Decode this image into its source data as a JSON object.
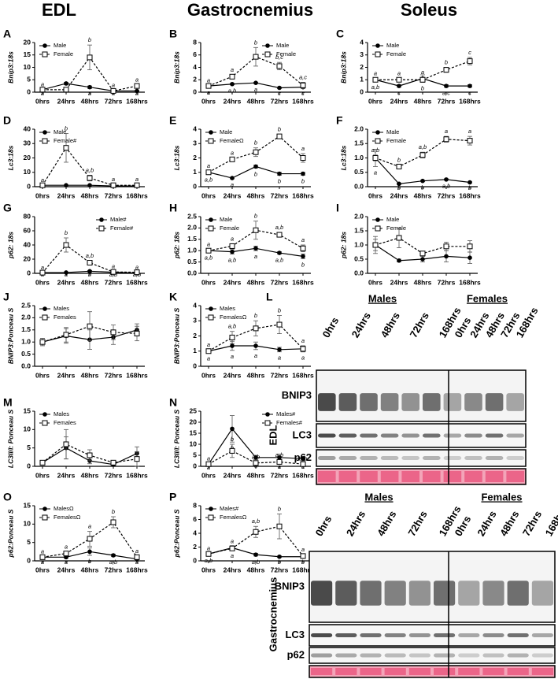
{
  "column_headers": [
    "EDL",
    "Gastrocnemius",
    "Soleus"
  ],
  "chart_data": [
    {
      "type": "line",
      "panel": "A",
      "ylabel": "Bnip3:18s",
      "categories": [
        "0hrs",
        "24hrs",
        "48hrs",
        "72hrs",
        "168hrs"
      ],
      "ylim": [
        0,
        20
      ],
      "yticks": [
        0,
        5,
        10,
        15,
        20
      ],
      "legend": "upper left",
      "series": [
        {
          "name": "Male",
          "color": "#000000",
          "dashed": false,
          "values": [
            1,
            3.5,
            2,
            0.5,
            0.5
          ],
          "errors": [
            0.1,
            0.5,
            0.5,
            0.2,
            0.2
          ],
          "letters": [
            "a",
            "b",
            "a",
            "a",
            "a"
          ]
        },
        {
          "name": "Female",
          "color": "#000000",
          "dashed": true,
          "values": [
            1,
            1,
            14,
            0.5,
            2.5
          ],
          "errors": [
            0.1,
            0.5,
            5,
            0.3,
            0.5
          ],
          "letters": [
            "a",
            "a",
            "b",
            "a",
            "a"
          ]
        }
      ]
    },
    {
      "type": "line",
      "panel": "B",
      "ylabel": "Bnip3:18s",
      "categories": [
        "0hrs",
        "24hrs",
        "48hrs",
        "72hrs",
        "168hrs"
      ],
      "ylim": [
        0,
        8
      ],
      "yticks": [
        0,
        2,
        4,
        6,
        8
      ],
      "legend": "upper right",
      "series": [
        {
          "name": "Male",
          "color": "#000000",
          "dashed": false,
          "values": [
            1,
            1.3,
            1.5,
            0.7,
            0.8
          ],
          "errors": [
            0.1,
            0.1,
            0.1,
            0.1,
            0.1
          ],
          "letters": [
            "a",
            "a,b",
            "a",
            "c",
            "c"
          ]
        },
        {
          "name": "Female",
          "color": "#000000",
          "dashed": true,
          "values": [
            1,
            2.5,
            5.7,
            4.2,
            1.1
          ],
          "errors": [
            0.1,
            0.3,
            1.5,
            0.6,
            0.5
          ],
          "letters": [
            "a",
            "a",
            "b",
            "b,c",
            "a,c"
          ]
        }
      ]
    },
    {
      "type": "line",
      "panel": "C",
      "ylabel": "Bnip3:18s",
      "categories": [
        "0hrs",
        "24hrs",
        "48hrs",
        "72hrs",
        "168hrs"
      ],
      "ylim": [
        0,
        4
      ],
      "yticks": [
        0,
        1,
        2,
        3,
        4
      ],
      "legend": "upper left",
      "series": [
        {
          "name": "Male",
          "color": "#000000",
          "dashed": false,
          "values": [
            1,
            0.5,
            1.1,
            0.5,
            0.5
          ],
          "errors": [
            0.1,
            0.1,
            0.3,
            0.1,
            0.1
          ],
          "letters": [
            "a,b",
            "c",
            "b",
            "a,c",
            "c"
          ]
        },
        {
          "name": "Female",
          "color": "#000000",
          "dashed": true,
          "values": [
            1,
            1,
            1,
            1.8,
            2.5
          ],
          "errors": [
            0.1,
            0.1,
            0.2,
            0.2,
            0.3
          ],
          "letters": [
            "a",
            "a",
            "a",
            "b",
            "c"
          ]
        }
      ]
    },
    {
      "type": "line",
      "panel": "D",
      "ylabel": "Lc3:18s",
      "categories": [
        "0hrs",
        "24hrs",
        "48hrs",
        "72hrs",
        "168hrs"
      ],
      "ylim": [
        0,
        40
      ],
      "yticks": [
        0,
        10,
        20,
        30,
        40
      ],
      "legend": "upper left",
      "series": [
        {
          "name": "Male",
          "color": "#000000",
          "dashed": false,
          "values": [
            1,
            1,
            1,
            0.5,
            0.5
          ],
          "errors": [
            0.2,
            0.2,
            0.2,
            0.2,
            0.2
          ]
        },
        {
          "name": "Female#",
          "color": "#000000",
          "dashed": true,
          "values": [
            1,
            27,
            6,
            1,
            1
          ],
          "errors": [
            0.2,
            10,
            2,
            0.5,
            0.5
          ],
          "letters": [
            "a",
            "b",
            "a,b",
            "a",
            "a"
          ]
        }
      ]
    },
    {
      "type": "line",
      "panel": "E",
      "ylabel": "Lc3:18s",
      "categories": [
        "0hrs",
        "24hrs",
        "48hrs",
        "72hrs",
        "168hrs"
      ],
      "ylim": [
        0,
        4
      ],
      "yticks": [
        0,
        1,
        2,
        3,
        4
      ],
      "legend": "upper left",
      "series": [
        {
          "name": "Male",
          "color": "#000000",
          "dashed": false,
          "values": [
            1,
            0.6,
            1.4,
            0.9,
            0.9
          ],
          "errors": [
            0.1,
            0.05,
            0.1,
            0.1,
            0.1
          ],
          "letters": [
            "a,b",
            "a",
            "b",
            "b",
            "b"
          ]
        },
        {
          "name": "FemaleΩ",
          "color": "#000000",
          "dashed": true,
          "values": [
            1,
            1.9,
            2.4,
            3.5,
            2.0
          ],
          "errors": [
            0.1,
            0.1,
            0.3,
            0.15,
            0.3
          ],
          "letters": [
            "a",
            "a",
            "b",
            "b",
            "a"
          ]
        }
      ]
    },
    {
      "type": "line",
      "panel": "F",
      "ylabel": "Lc3:18s",
      "categories": [
        "0hrs",
        "24hrs",
        "48hrs",
        "72hrs",
        "168hrs"
      ],
      "ylim": [
        0,
        2
      ],
      "yticks": [
        {
          "value": 0,
          "label": "0.0"
        },
        0.5,
        {
          "value": 1,
          "label": "1.0"
        },
        1.5,
        {
          "value": 2,
          "label": "2.0"
        }
      ],
      "legend": "upper left",
      "series": [
        {
          "name": "Male",
          "color": "#000000",
          "dashed": false,
          "values": [
            1,
            0.1,
            0.2,
            0.25,
            0.15
          ],
          "errors": [
            0.3,
            0.02,
            0.02,
            0.02,
            0.02
          ],
          "letters": [
            "a",
            "b",
            "b",
            "a,b",
            "b"
          ]
        },
        {
          "name": "Female",
          "color": "#000000",
          "dashed": true,
          "values": [
            1,
            0.7,
            1.1,
            1.65,
            1.6
          ],
          "errors": [
            0.1,
            0.05,
            0.1,
            0.1,
            0.15
          ],
          "letters": [
            "a,b",
            "b",
            "a,b",
            "a",
            "a"
          ]
        }
      ]
    },
    {
      "type": "line",
      "panel": "G",
      "ylabel": "p62: 18s",
      "categories": [
        "0hrs",
        "24hrs",
        "48hrs",
        "72hrs",
        "168hrs"
      ],
      "ylim": [
        0,
        80
      ],
      "yticks": [
        0,
        20,
        40,
        60,
        80
      ],
      "legend": "upper right",
      "series": [
        {
          "name": "Male#",
          "color": "#000000",
          "dashed": false,
          "values": [
            1,
            1.2,
            3,
            1.5,
            0.5
          ],
          "errors": [
            0.2,
            0.2,
            1,
            0.3,
            0.1
          ],
          "letters": [
            "a",
            "a",
            "b",
            "a,b",
            "a,b"
          ]
        },
        {
          "name": "Female#",
          "color": "#000000",
          "dashed": true,
          "values": [
            1,
            40,
            15,
            2,
            1.5
          ],
          "errors": [
            0.2,
            10,
            3,
            0.5,
            0.3
          ],
          "letters": [
            "a",
            "b",
            "a,b",
            "a",
            "a"
          ]
        }
      ]
    },
    {
      "type": "line",
      "panel": "H",
      "ylabel": "p62: 18s",
      "categories": [
        "0hrs",
        "24hrs",
        "48hrs",
        "72hrs",
        "168hrs"
      ],
      "ylim": [
        0,
        2.5
      ],
      "yticks": [
        {
          "value": 0,
          "label": "0.0"
        },
        0.5,
        {
          "value": 1,
          "label": "1.0"
        },
        1.5,
        {
          "value": 2,
          "label": "2.0"
        },
        2.5
      ],
      "legend": "upper left",
      "series": [
        {
          "name": "Male",
          "color": "#000000",
          "dashed": false,
          "values": [
            1,
            0.95,
            1.1,
            0.9,
            0.75
          ],
          "errors": [
            0.05,
            0.1,
            0.1,
            0.05,
            0.1
          ],
          "letters": [
            "a,b",
            "a,b",
            "a",
            "a,b",
            "b"
          ]
        },
        {
          "name": "Female",
          "color": "#000000",
          "dashed": true,
          "values": [
            1,
            1.2,
            1.9,
            1.7,
            1.1
          ],
          "errors": [
            0.05,
            0.1,
            0.4,
            0.1,
            0.15
          ],
          "letters": [
            "a",
            "a",
            "b",
            "a,b",
            "a"
          ]
        }
      ]
    },
    {
      "type": "line",
      "panel": "I",
      "ylabel": "p62: 18s",
      "categories": [
        "0hrs",
        "24hrs",
        "48hrs",
        "72hrs",
        "168hrs"
      ],
      "ylim": [
        0,
        2
      ],
      "yticks": [
        {
          "value": 0,
          "label": "0.0"
        },
        0.5,
        {
          "value": 1,
          "label": "1.0"
        },
        1.5,
        {
          "value": 2,
          "label": "2.0"
        }
      ],
      "legend": "upper left",
      "series": [
        {
          "name": "Male",
          "color": "#000000",
          "dashed": false,
          "values": [
            1,
            0.45,
            0.5,
            0.6,
            0.55
          ],
          "errors": [
            0.2,
            0.05,
            0.1,
            0.2,
            0.2
          ]
        },
        {
          "name": "Female",
          "color": "#000000",
          "dashed": true,
          "values": [
            1,
            1.25,
            0.7,
            0.95,
            0.95
          ],
          "errors": [
            0.3,
            0.35,
            0.05,
            0.15,
            0.2
          ]
        }
      ]
    },
    {
      "type": "line",
      "panel": "J",
      "ylabel": "BNIP3:Ponceau S",
      "categories": [
        "0hrs",
        "24hrs",
        "48hrs",
        "72hrs",
        "168hrs"
      ],
      "ylim": [
        0,
        2.5
      ],
      "yticks": [
        {
          "value": 0,
          "label": "0.0"
        },
        0.5,
        {
          "value": 1,
          "label": "1.0"
        },
        1.5,
        {
          "value": 2,
          "label": "2.0"
        },
        2.5
      ],
      "legend": "upper left",
      "series": [
        {
          "name": "Males",
          "color": "#000000",
          "dashed": false,
          "values": [
            1,
            1.25,
            1.1,
            1.2,
            1.5
          ],
          "errors": [
            0.15,
            0.3,
            0.4,
            0.3,
            0.25
          ]
        },
        {
          "name": "Females",
          "color": "#000000",
          "dashed": true,
          "values": [
            1,
            1.3,
            1.65,
            1.4,
            1.35
          ],
          "errors": [
            0.15,
            0.3,
            0.6,
            0.3,
            0.3
          ]
        }
      ]
    },
    {
      "type": "line",
      "panel": "K",
      "ylabel": "BNIP3:Ponceau S",
      "categories": [
        "0hrs",
        "24hrs",
        "48hrs",
        "72hrs",
        "168hrs"
      ],
      "ylim": [
        0,
        4
      ],
      "yticks": [
        0,
        1,
        2,
        3,
        4
      ],
      "legend": "upper left",
      "series": [
        {
          "name": "Males",
          "color": "#000000",
          "dashed": false,
          "values": [
            1,
            1.35,
            1.35,
            1.1,
            1.15
          ],
          "errors": [
            0.1,
            0.3,
            0.25,
            0.15,
            0.2
          ],
          "letters": [
            "a",
            "a",
            "a",
            "a",
            "a"
          ]
        },
        {
          "name": "FemalesΩ",
          "color": "#000000",
          "dashed": true,
          "values": [
            1,
            1.9,
            2.5,
            2.75,
            1.15
          ],
          "errors": [
            0.1,
            0.4,
            0.5,
            0.6,
            0.2
          ],
          "letters": [
            "a",
            "a,b",
            "b",
            "b",
            "a"
          ]
        }
      ]
    },
    {
      "type": "line",
      "panel": "M",
      "ylabel": "LC3II/I: Ponceau S",
      "categories": [
        "0hrs",
        "24hrs",
        "48hrs",
        "72hrs",
        "168hrs"
      ],
      "ylim": [
        0,
        15
      ],
      "yticks": [
        0,
        5,
        10,
        15
      ],
      "legend": "upper left",
      "series": [
        {
          "name": "Males",
          "color": "#000000",
          "dashed": false,
          "values": [
            1,
            5,
            1.5,
            0.5,
            3.5
          ],
          "errors": [
            0.3,
            3,
            0.8,
            0.3,
            1.8
          ]
        },
        {
          "name": "Females",
          "color": "#000000",
          "dashed": true,
          "values": [
            1,
            6,
            3,
            1,
            2
          ],
          "errors": [
            0.3,
            4,
            1.5,
            0.5,
            2
          ]
        }
      ]
    },
    {
      "type": "line",
      "panel": "N",
      "ylabel": "LC3II/I: Ponceau S",
      "categories": [
        "0hrs",
        "24hrs",
        "48hrs",
        "72hrs",
        "168hrs"
      ],
      "ylim": [
        0,
        25
      ],
      "yticks": [
        0,
        5,
        10,
        15,
        20,
        25
      ],
      "legend": "upper right",
      "series": [
        {
          "name": "Males#",
          "color": "#000000",
          "dashed": false,
          "values": [
            1,
            17,
            4,
            4,
            3.5
          ],
          "errors": [
            0.3,
            6,
            1,
            1.5,
            1
          ],
          "letters": [
            "a",
            "b",
            "a",
            "a",
            "a"
          ]
        },
        {
          "name": "Females#",
          "color": "#000000",
          "dashed": true,
          "values": [
            1,
            7,
            1.5,
            2,
            1
          ],
          "errors": [
            0.3,
            3,
            0.5,
            0.8,
            0.3
          ],
          "letters": [
            "a",
            "b",
            "a,b",
            "a,b",
            "a,b"
          ]
        }
      ]
    },
    {
      "type": "line",
      "panel": "O",
      "ylabel": "p62:Ponceau S",
      "categories": [
        "0hrs",
        "24hrs",
        "48hrs",
        "72hrs",
        "168hrs"
      ],
      "ylim": [
        0,
        15
      ],
      "yticks": [
        0,
        5,
        10,
        15
      ],
      "legend": "upper left",
      "series": [
        {
          "name": "MalesΩ",
          "color": "#000000",
          "dashed": false,
          "values": [
            1,
            1,
            2.5,
            1.5,
            0.5
          ],
          "errors": [
            0.2,
            0.3,
            1,
            0.3,
            0.2
          ],
          "letters": [
            "a",
            "a",
            "b",
            "a,b",
            "a"
          ]
        },
        {
          "name": "FemalesΩ",
          "color": "#000000",
          "dashed": true,
          "values": [
            1,
            2,
            6,
            10.5,
            1
          ],
          "errors": [
            0.2,
            0.5,
            2,
            1.5,
            0.3
          ],
          "letters": [
            "a",
            "a",
            "a",
            "b",
            "a"
          ]
        }
      ]
    },
    {
      "type": "line",
      "panel": "P",
      "ylabel": "p62:Ponceau S",
      "categories": [
        "0hrs",
        "24hrs",
        "48hrs",
        "72hrs",
        "168hrs"
      ],
      "ylim": [
        0,
        8
      ],
      "yticks": [
        0,
        2,
        4,
        6,
        8
      ],
      "legend": "upper left",
      "series": [
        {
          "name": "Males#",
          "color": "#000000",
          "dashed": false,
          "values": [
            1,
            1.9,
            0.9,
            0.6,
            0.6
          ],
          "errors": [
            0.1,
            0.3,
            0.2,
            0.1,
            0.1
          ],
          "letters": [
            "a,b",
            "a",
            "a,b",
            "b",
            "b"
          ]
        },
        {
          "name": "FemalesΩ",
          "color": "#000000",
          "dashed": true,
          "values": [
            1,
            1.8,
            4.2,
            5,
            0.7
          ],
          "errors": [
            0.1,
            0.3,
            0.8,
            1.8,
            0.2
          ],
          "letters": [
            "a",
            "a",
            "a,b",
            "b",
            "a"
          ]
        }
      ]
    }
  ],
  "blot": {
    "panel": "L",
    "groups": [
      "Males",
      "Females"
    ],
    "timepoints": [
      "0hrs",
      "24hrs",
      "48hrs",
      "72hrs",
      "168hrs"
    ],
    "proteins": [
      "BNIP3",
      "LC3",
      "p62"
    ],
    "tissues": [
      "EDL",
      "Gastrocnemius"
    ]
  }
}
